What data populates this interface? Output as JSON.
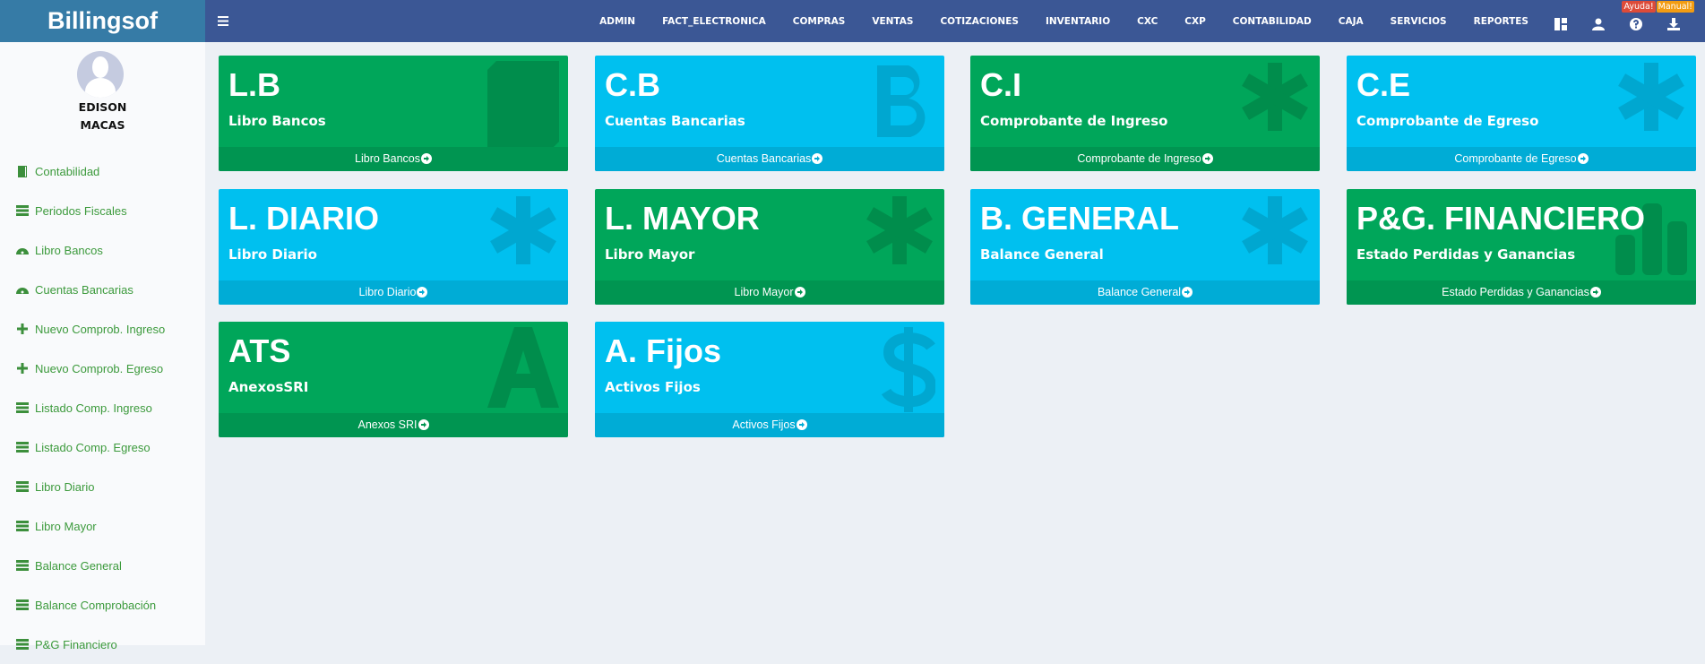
{
  "header": {
    "logo": "Billingsof",
    "nav": [
      "ADMIN",
      "FACT_ELECTRONICA",
      "COMPRAS",
      "VENTAS",
      "COTIZACIONES",
      "INVENTARIO",
      "CXC",
      "CXP",
      "CONTABILIDAD",
      "CAJA",
      "SERVICIOS",
      "REPORTES"
    ],
    "badge_help": "Ayuda!",
    "badge_manual": "Manual!",
    "badge_help_color": "#dd4b39",
    "badge_manual_color": "#f39c12"
  },
  "user": {
    "first": "EDISON",
    "last": "MACAS"
  },
  "sidebar": {
    "items": [
      {
        "label": "Contabilidad",
        "icon": "book-icon"
      },
      {
        "label": "Periodos Fiscales",
        "icon": "server-icon"
      },
      {
        "label": "Libro Bancos",
        "icon": "dashboard-icon"
      },
      {
        "label": "Cuentas Bancarias",
        "icon": "dashboard-icon"
      },
      {
        "label": "Nuevo Comprob. Ingreso",
        "icon": "plus-icon"
      },
      {
        "label": "Nuevo Comprob. Egreso",
        "icon": "plus-icon"
      },
      {
        "label": "Listado Comp. Ingreso",
        "icon": "server-icon"
      },
      {
        "label": "Listado Comp. Egreso",
        "icon": "server-icon"
      },
      {
        "label": "Libro Diario",
        "icon": "server-icon"
      },
      {
        "label": "Libro Mayor",
        "icon": "server-icon"
      },
      {
        "label": "Balance General",
        "icon": "server-icon"
      },
      {
        "label": "Balance Comprobación",
        "icon": "server-icon"
      },
      {
        "label": "P&G Financiero",
        "icon": "server-icon"
      }
    ]
  },
  "cards": [
    {
      "title": "L.B",
      "subtitle": "Libro Bancos",
      "link": "Libro Bancos",
      "color": "green",
      "icon": "book-icon"
    },
    {
      "title": "C.B",
      "subtitle": "Cuentas Bancarias",
      "link": "Cuentas Bancarias",
      "color": "aqua",
      "icon": "bitcoin-icon"
    },
    {
      "title": "C.I",
      "subtitle": "Comprobante de Ingreso",
      "link": "Comprobante de Ingreso",
      "color": "green",
      "icon": "asterisk-icon"
    },
    {
      "title": "C.E",
      "subtitle": "Comprobante de Egreso",
      "link": "Comprobante de Egreso",
      "color": "aqua",
      "icon": "asterisk-icon"
    },
    {
      "title": "L. DIARIO",
      "subtitle": "Libro Diario",
      "link": "Libro Diario",
      "color": "aqua",
      "icon": "asterisk-icon"
    },
    {
      "title": "L. MAYOR",
      "subtitle": "Libro Mayor",
      "link": "Libro Mayor",
      "color": "green",
      "icon": "asterisk-icon"
    },
    {
      "title": "B. GENERAL",
      "subtitle": "Balance General",
      "link": "Balance General",
      "color": "aqua",
      "icon": "asterisk-icon"
    },
    {
      "title": "P&G. FINANCIERO",
      "subtitle": "Estado Perdidas y Ganancias",
      "link": "Estado Perdidas y Ganancias",
      "color": "green",
      "icon": "bar-chart-icon"
    },
    {
      "title": "ATS",
      "subtitle": "AnexosSRI",
      "link": "Anexos SRI",
      "color": "green",
      "icon": "font-icon"
    },
    {
      "title": "A. Fijos",
      "subtitle": "Activos Fijos",
      "link": "Activos Fijos",
      "color": "aqua",
      "icon": "dollar-icon"
    }
  ]
}
